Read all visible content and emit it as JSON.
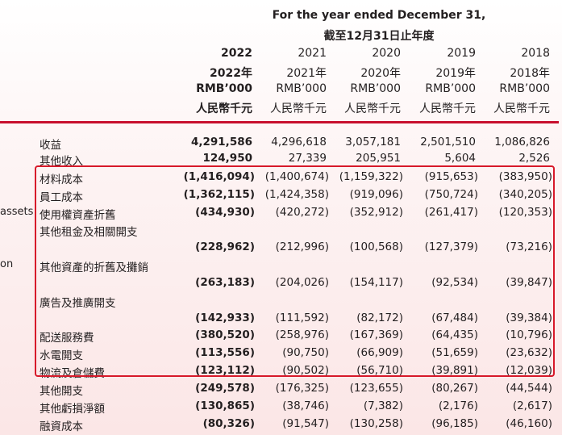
{
  "header": {
    "title_en": "For the year ended December 31,",
    "title_zh": "截至12月31日止年度",
    "columns": [
      {
        "year": "2022",
        "year_zh": "2022年",
        "unit": "RMB’000",
        "unit_zh": "人民幣千元",
        "bold": true
      },
      {
        "year": "2021",
        "year_zh": "2021年",
        "unit": "RMB’000",
        "unit_zh": "人民幣千元"
      },
      {
        "year": "2020",
        "year_zh": "2020年",
        "unit": "RMB’000",
        "unit_zh": "人民幣千元"
      },
      {
        "year": "2019",
        "year_zh": "2019年",
        "unit": "RMB’000",
        "unit_zh": "人民幣千元"
      },
      {
        "year": "2018",
        "year_zh": "2018年",
        "unit": "RMB’000",
        "unit_zh": "人民幣千元"
      }
    ]
  },
  "side_fragments": [
    "assets",
    "on"
  ],
  "rows": [
    {
      "label": "收益",
      "values": [
        "4,291,586",
        "4,296,618",
        "3,057,181",
        "2,501,510",
        "1,086,826"
      ]
    },
    {
      "label": "其他收入",
      "values": [
        "124,950",
        "27,339",
        "205,951",
        "5,604",
        "2,526"
      ]
    },
    {
      "label": "材料成本",
      "values": [
        "(1,416,094)",
        "(1,400,674)",
        "(1,159,322)",
        "(915,653)",
        "(383,950)"
      ]
    },
    {
      "label": "員工成本",
      "values": [
        "(1,362,115)",
        "(1,424,358)",
        "(919,096)",
        "(750,724)",
        "(340,205)"
      ]
    },
    {
      "label": "使用權資產折舊",
      "values": [
        "(434,930)",
        "(420,272)",
        "(352,912)",
        "(261,417)",
        "(120,353)"
      ]
    },
    {
      "label": "其他租金及相關開支",
      "values": [
        "(228,962)",
        "(212,996)",
        "(100,568)",
        "(127,379)",
        "(73,216)"
      ]
    },
    {
      "label": "其他資產的折舊及攤銷",
      "values": [
        "(263,183)",
        "(204,026)",
        "(154,117)",
        "(92,534)",
        "(39,847)"
      ]
    },
    {
      "label": "廣告及推廣開支",
      "values": [
        "(142,933)",
        "(111,592)",
        "(82,172)",
        "(67,484)",
        "(39,384)"
      ]
    },
    {
      "label": "配送服務費",
      "values": [
        "(380,520)",
        "(258,976)",
        "(167,369)",
        "(64,435)",
        "(10,796)"
      ]
    },
    {
      "label": "水電開支",
      "values": [
        "(113,556)",
        "(90,750)",
        "(66,909)",
        "(51,659)",
        "(23,632)"
      ]
    },
    {
      "label": "物流及倉儲費",
      "values": [
        "(123,112)",
        "(90,502)",
        "(56,710)",
        "(39,891)",
        "(12,039)"
      ]
    },
    {
      "label": "其他開支",
      "values": [
        "(249,578)",
        "(176,325)",
        "(123,655)",
        "(80,267)",
        "(44,544)"
      ]
    },
    {
      "label": "其他虧損淨額",
      "values": [
        "(130,865)",
        "(38,746)",
        "(7,382)",
        "(2,176)",
        "(2,617)"
      ]
    },
    {
      "label": "融資成本",
      "values": [
        "(80,326)",
        "(91,547)",
        "(130,258)",
        "(96,185)",
        "(46,160)"
      ]
    }
  ],
  "highlight_color": "#d7192a",
  "rule_color": "#c8102e"
}
